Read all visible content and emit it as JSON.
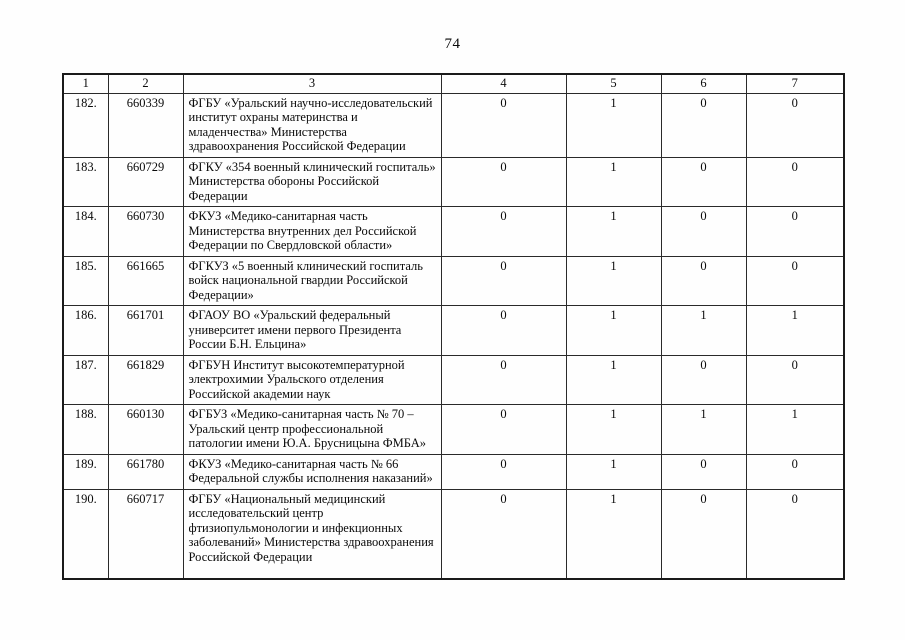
{
  "page_number": "74",
  "table": {
    "headers": [
      "1",
      "2",
      "3",
      "4",
      "5",
      "6",
      "7"
    ],
    "rows": [
      {
        "num": "182.",
        "code": "660339",
        "name": "ФГБУ «Уральский научно-исследовательский институт охраны материнства и младенчества» Министерства здравоохранения Российской Федерации",
        "col4": "0",
        "col5": "1",
        "col6": "0",
        "col7": "0"
      },
      {
        "num": "183.",
        "code": "660729",
        "name": "ФГКУ «354 военный клинический госпиталь» Министерства обороны Российской Федерации",
        "col4": "0",
        "col5": "1",
        "col6": "0",
        "col7": "0"
      },
      {
        "num": "184.",
        "code": "660730",
        "name": "ФКУЗ «Медико-санитарная часть Министерства внутренних дел Российской Федерации по Свердловской области»",
        "col4": "0",
        "col5": "1",
        "col6": "0",
        "col7": "0"
      },
      {
        "num": "185.",
        "code": "661665",
        "name": "ФГКУЗ «5 военный клинический госпиталь войск национальной гвардии Российской Федерации»",
        "col4": "0",
        "col5": "1",
        "col6": "0",
        "col7": "0"
      },
      {
        "num": "186.",
        "code": "661701",
        "name": "ФГАОУ ВО «Уральский федеральный университет имени первого Президента России Б.Н. Ельцина»",
        "col4": "0",
        "col5": "1",
        "col6": "1",
        "col7": "1"
      },
      {
        "num": "187.",
        "code": "661829",
        "name": "ФГБУН Институт высокотемпературной электрохимии Уральского отделения Российской академии наук",
        "col4": "0",
        "col5": "1",
        "col6": "0",
        "col7": "0"
      },
      {
        "num": "188.",
        "code": "660130",
        "name": "ФГБУЗ «Медико-санитарная часть № 70 – Уральский центр профессиональной патологии имени Ю.А. Брусницына ФМБА»",
        "col4": "0",
        "col5": "1",
        "col6": "1",
        "col7": "1"
      },
      {
        "num": "189.",
        "code": "661780",
        "name": "ФКУЗ «Медико-санитарная часть № 66 Федеральной службы исполнения наказаний»",
        "col4": "0",
        "col5": "1",
        "col6": "0",
        "col7": "0"
      },
      {
        "num": "190.",
        "code": "660717",
        "name": "ФГБУ «Национальный медицинский исследовательский центр фтизиопульмонологии и инфекционных заболеваний» Министерства здравоохранения Российской Федерации",
        "col4": "0",
        "col5": "1",
        "col6": "0",
        "col7": "0"
      }
    ]
  }
}
